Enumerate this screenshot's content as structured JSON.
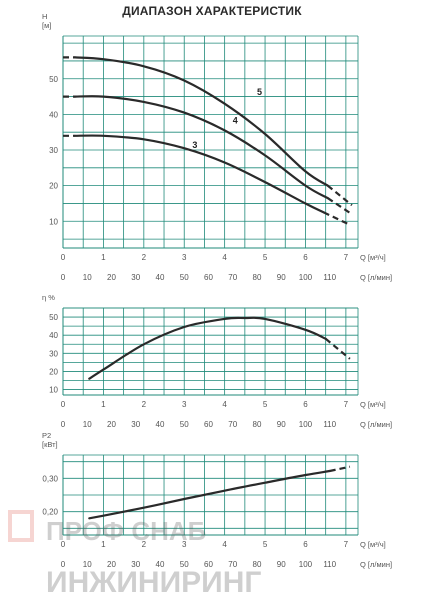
{
  "title": "ДИАПАЗОН ХАРАКТЕРИСТИК",
  "colors": {
    "grid": "#1f8a7a",
    "curve": "#2a2a2a",
    "text": "#555555",
    "watermark": "#e26b5f"
  },
  "watermark": {
    "line1": "ПРОФ СНАБ",
    "line2": "ИНЖИНИРИНГ"
  },
  "chart_data": [
    {
      "id": "head",
      "type": "line",
      "ylabel": "H\n[м]",
      "xlabel_m3": "Q [м³/ч]",
      "xlabel_lmin": "Q [л/мин]",
      "xlim": [
        0,
        7.3
      ],
      "ylim": [
        2.5,
        62
      ],
      "yticks": [
        10,
        20,
        30,
        40,
        50
      ],
      "xticks_m3": [
        0,
        1,
        2,
        3,
        4,
        5,
        6,
        7
      ],
      "xticks_lmin": [
        0,
        10,
        20,
        30,
        40,
        50,
        60,
        70,
        80,
        90,
        100,
        110
      ],
      "series": [
        {
          "name": "3",
          "solid_x": [
            0.3,
            1,
            2,
            3,
            4,
            5,
            6,
            6.45
          ],
          "solid_y": [
            34,
            34,
            33,
            30.5,
            26.5,
            21,
            15,
            12.5
          ],
          "dash_x": [
            0,
            0.3
          ],
          "dash_y": [
            34,
            34
          ],
          "dash2_x": [
            6.45,
            7.1
          ],
          "dash2_y": [
            12.5,
            9
          ]
        },
        {
          "name": "4",
          "solid_x": [
            0.3,
            1,
            2,
            3,
            4,
            5,
            6,
            6.55
          ],
          "solid_y": [
            45,
            45,
            43.5,
            40.5,
            35.5,
            28.5,
            20,
            16.5
          ],
          "dash_x": [
            0,
            0.3
          ],
          "dash_y": [
            45,
            45
          ],
          "dash2_x": [
            6.55,
            7.15
          ],
          "dash2_y": [
            16.5,
            12
          ]
        },
        {
          "name": "5",
          "solid_x": [
            0.3,
            1,
            2,
            3,
            4,
            5,
            6,
            6.55
          ],
          "solid_y": [
            56,
            55.5,
            53.5,
            49.5,
            43,
            34.5,
            24,
            20
          ],
          "dash_x": [
            0,
            0.3
          ],
          "dash_y": [
            56,
            56
          ],
          "dash2_x": [
            6.55,
            7.15
          ],
          "dash2_y": [
            20,
            14.5
          ]
        }
      ],
      "labels": [
        {
          "text": "3",
          "x": 3.2,
          "y": 30.5
        },
        {
          "text": "4",
          "x": 4.2,
          "y": 37.5
        },
        {
          "text": "5",
          "x": 4.8,
          "y": 45.5
        }
      ]
    },
    {
      "id": "efficiency",
      "type": "line",
      "ylabel": "η %",
      "xlabel_m3": "Q [м³/ч]",
      "xlabel_lmin": "Q [л/мин]",
      "xlim": [
        0,
        7.3
      ],
      "ylim": [
        7,
        55
      ],
      "yticks": [
        10,
        20,
        30,
        40,
        50
      ],
      "xticks_m3": [
        0,
        1,
        2,
        3,
        4,
        5,
        6,
        7
      ],
      "xticks_lmin": [
        0,
        10,
        20,
        30,
        40,
        50,
        60,
        70,
        80,
        90,
        100,
        110
      ],
      "series": [
        {
          "name": "η",
          "solid_x": [
            0.65,
            1,
            2,
            3,
            4,
            4.5,
            5,
            6,
            6.5
          ],
          "solid_y": [
            16,
            21,
            35,
            44.5,
            49,
            49.5,
            49,
            43,
            38
          ],
          "dash2_x": [
            6.5,
            7.1
          ],
          "dash2_y": [
            38,
            27
          ]
        }
      ]
    },
    {
      "id": "power",
      "type": "line",
      "ylabel": "P2\n[кВт]",
      "xlabel_m3": "Q [м³/ч]",
      "xlabel_lmin": "Q [л/мин]",
      "xlim": [
        0,
        7.3
      ],
      "ylim": [
        0.13,
        0.37
      ],
      "yticks": [
        0.2,
        0.3
      ],
      "ytick_labels": [
        "0,20",
        "0,30"
      ],
      "xticks_m3": [
        0,
        1,
        2,
        3,
        4,
        5,
        6,
        7
      ],
      "xticks_lmin": [
        0,
        10,
        20,
        30,
        40,
        50,
        60,
        70,
        80,
        90,
        100,
        110
      ],
      "series": [
        {
          "name": "P2",
          "solid_x": [
            0.65,
            1,
            2,
            3,
            4,
            5,
            6,
            6.6
          ],
          "solid_y": [
            0.18,
            0.188,
            0.212,
            0.238,
            0.263,
            0.287,
            0.31,
            0.322
          ],
          "dash2_x": [
            6.6,
            7.1
          ],
          "dash2_y": [
            0.322,
            0.335
          ]
        }
      ]
    }
  ]
}
